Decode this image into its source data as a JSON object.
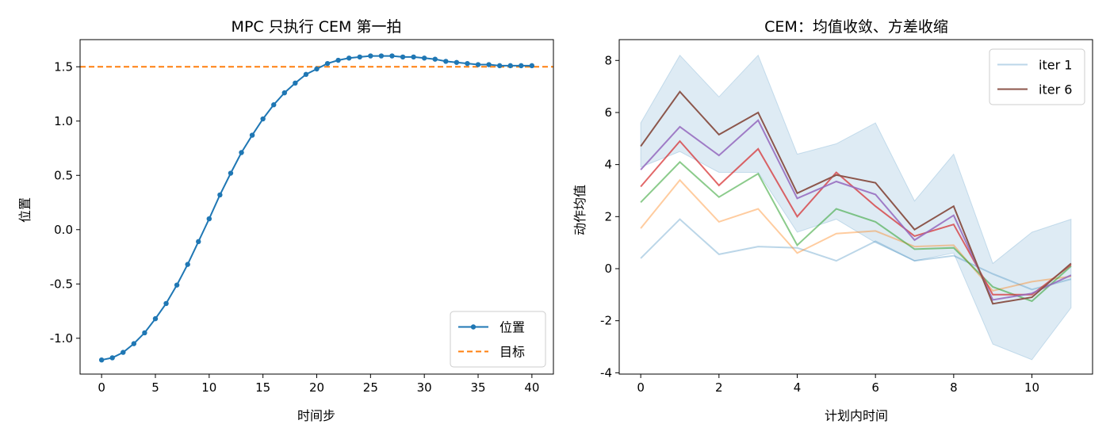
{
  "chart_data": [
    {
      "type": "line",
      "title": "MPC 只执行 CEM 第一拍",
      "xlabel": "时间步",
      "ylabel": "位置",
      "xlim": [
        -2,
        42
      ],
      "ylim": [
        -1.33,
        1.75
      ],
      "xticks": [
        0,
        5,
        10,
        15,
        20,
        25,
        30,
        35,
        40
      ],
      "yticks": [
        -1.0,
        -0.5,
        0.0,
        0.5,
        1.0,
        1.5
      ],
      "ytick_labels": [
        "-1.0",
        "-0.5",
        "0.0",
        "0.5",
        "1.0",
        "1.5"
      ],
      "legend_position": "lower-right",
      "series": [
        {
          "name": "位置",
          "style": "line-marker",
          "color": "#1f77b4",
          "x": [
            0,
            1,
            2,
            3,
            4,
            5,
            6,
            7,
            8,
            9,
            10,
            11,
            12,
            13,
            14,
            15,
            16,
            17,
            18,
            19,
            20,
            21,
            22,
            23,
            24,
            25,
            26,
            27,
            28,
            29,
            30,
            31,
            32,
            33,
            34,
            35,
            36,
            37,
            38,
            39,
            40
          ],
          "values": [
            -1.2,
            -1.18,
            -1.13,
            -1.05,
            -0.95,
            -0.82,
            -0.68,
            -0.51,
            -0.32,
            -0.11,
            0.1,
            0.32,
            0.52,
            0.71,
            0.87,
            1.02,
            1.15,
            1.26,
            1.35,
            1.43,
            1.48,
            1.53,
            1.56,
            1.58,
            1.59,
            1.6,
            1.6,
            1.6,
            1.59,
            1.59,
            1.58,
            1.57,
            1.55,
            1.54,
            1.53,
            1.52,
            1.52,
            1.51,
            1.51,
            1.51,
            1.51
          ]
        },
        {
          "name": "目标",
          "style": "dashed-hline",
          "color": "#ff7f0e",
          "y": 1.5
        }
      ]
    },
    {
      "type": "line",
      "title": "CEM：均值收敛、方差收缩",
      "xlabel": "计划内时间",
      "ylabel": "动作均值",
      "xlim": [
        -0.55,
        11.55
      ],
      "ylim": [
        -4.05,
        8.8
      ],
      "xticks": [
        0,
        2,
        4,
        6,
        8,
        10
      ],
      "yticks": [
        -4,
        -2,
        0,
        2,
        4,
        6,
        8
      ],
      "ytick_labels": [
        "-4",
        "-2",
        "0",
        "2",
        "4",
        "6",
        "8"
      ],
      "legend_position": "top-right",
      "x": [
        0,
        1,
        2,
        3,
        4,
        5,
        6,
        7,
        8,
        9,
        10,
        11
      ],
      "band": {
        "color": "#1f77b4",
        "lower": [
          3.9,
          4.5,
          3.7,
          3.7,
          1.4,
          1.9,
          1.0,
          0.3,
          0.6,
          -2.9,
          -3.5,
          -1.5
        ],
        "upper": [
          5.6,
          8.2,
          6.6,
          8.2,
          4.4,
          4.8,
          5.6,
          2.6,
          4.4,
          0.2,
          1.4,
          1.9
        ]
      },
      "series": [
        {
          "name": "iter 1",
          "color": "#1f77b4",
          "opacity": 0.3,
          "values": [
            0.4,
            1.9,
            0.55,
            0.85,
            0.8,
            0.3,
            1.05,
            0.3,
            0.5,
            -0.2,
            -0.8,
            -0.4
          ]
        },
        {
          "color": "#ff7f0e",
          "opacity": 0.4,
          "values": [
            1.55,
            3.4,
            1.8,
            2.3,
            0.6,
            1.35,
            1.45,
            0.85,
            0.9,
            -0.85,
            -0.5,
            -0.3
          ]
        },
        {
          "color": "#2ca02c",
          "opacity": 0.55,
          "values": [
            2.55,
            4.1,
            2.75,
            3.65,
            0.9,
            2.3,
            1.8,
            0.75,
            0.8,
            -0.7,
            -1.25,
            0.1
          ]
        },
        {
          "color": "#d62728",
          "opacity": 0.7,
          "values": [
            3.15,
            4.9,
            3.2,
            4.6,
            2.0,
            3.7,
            2.4,
            1.25,
            1.7,
            -1.0,
            -1.0,
            0.15
          ]
        },
        {
          "color": "#9467bd",
          "opacity": 0.85,
          "values": [
            3.8,
            5.45,
            4.35,
            5.7,
            2.7,
            3.35,
            2.85,
            1.1,
            2.05,
            -1.2,
            -0.95,
            -0.25
          ]
        },
        {
          "name": "iter 6",
          "color": "#8c564b",
          "opacity": 1.0,
          "values": [
            4.7,
            6.8,
            5.15,
            6.0,
            2.9,
            3.6,
            3.3,
            1.5,
            2.4,
            -1.35,
            -1.1,
            0.2
          ]
        }
      ]
    }
  ]
}
